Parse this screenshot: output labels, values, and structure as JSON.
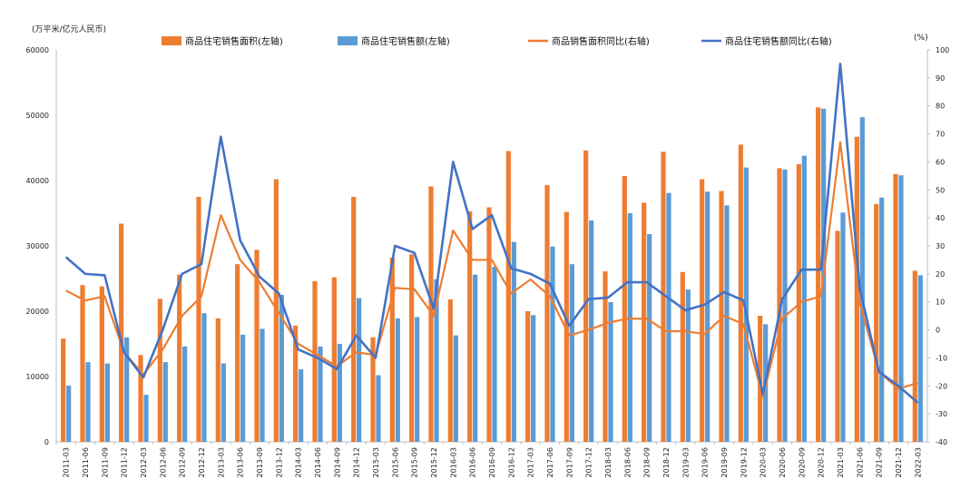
{
  "chart_data": {
    "type": "bar",
    "left_unit_label": "(万平米/亿元人民币)",
    "right_unit_label": "(%)",
    "categories": [
      "2011-03",
      "2011-06",
      "2011-09",
      "2011-12",
      "2012-03",
      "2012-06",
      "2012-09",
      "2012-12",
      "2013-03",
      "2013-06",
      "2013-09",
      "2013-12",
      "2014-03",
      "2014-06",
      "2014-09",
      "2014-12",
      "2015-03",
      "2015-06",
      "2015-09",
      "2015-12",
      "2016-03",
      "2016-06",
      "2016-09",
      "2016-12",
      "2017-03",
      "2017-06",
      "2017-09",
      "2017-12",
      "2018-03",
      "2018-06",
      "2018-09",
      "2018-12",
      "2019-03",
      "2019-06",
      "2019-09",
      "2019-12",
      "2020-03",
      "2020-06",
      "2020-09",
      "2020-12",
      "2021-03",
      "2021-06",
      "2021-09",
      "2021-12",
      "2022-03"
    ],
    "left_axis": {
      "min": 0,
      "max": 60000,
      "ticks": [
        0,
        10000,
        20000,
        30000,
        40000,
        50000,
        60000
      ]
    },
    "right_axis": {
      "min": -40,
      "max": 100,
      "ticks": [
        -40,
        -30,
        -20,
        -10,
        0,
        10,
        20,
        30,
        40,
        50,
        60,
        70,
        80,
        90,
        100
      ]
    },
    "series": [
      {
        "name": "商品住宅销售面积(左轴)",
        "type": "bar",
        "axis": "left",
        "color": "#ED7D31",
        "values": [
          15800,
          24000,
          23800,
          33400,
          13300,
          21900,
          25600,
          37500,
          18900,
          27200,
          29400,
          40200,
          17800,
          24600,
          25200,
          37500,
          16000,
          28200,
          28700,
          39100,
          21800,
          35300,
          35900,
          44500,
          20000,
          39300,
          35200,
          44600,
          26100,
          40700,
          36600,
          44400,
          26000,
          40200,
          38400,
          45500,
          19300,
          41900,
          42500,
          51200,
          32300,
          46700,
          36400,
          41000,
          26200
        ]
      },
      {
        "name": "商品住宅销售额(左轴)",
        "type": "bar",
        "axis": "left",
        "color": "#5B9BD5",
        "values": [
          8600,
          12200,
          12000,
          16000,
          7200,
          12200,
          14600,
          19700,
          12000,
          16400,
          17300,
          22500,
          11100,
          14600,
          15000,
          22000,
          10200,
          18900,
          19100,
          24900,
          16300,
          25600,
          26800,
          30600,
          19400,
          29900,
          27200,
          33900,
          21400,
          35000,
          31800,
          38100,
          23300,
          38300,
          36200,
          42000,
          18000,
          41700,
          43800,
          51000,
          35100,
          49700,
          37400,
          40800,
          25500
        ]
      },
      {
        "name": "商品销售面积同比(右轴)",
        "type": "line",
        "axis": "right",
        "color": "#ED7D31",
        "values": [
          14,
          10.5,
          12,
          -8,
          -16,
          -7,
          5,
          12,
          41,
          25,
          17,
          6,
          -5,
          -9,
          -13,
          -8,
          -9,
          15,
          14.5,
          5,
          35.5,
          25,
          25,
          13,
          18,
          12,
          -2,
          0,
          2.5,
          4,
          4,
          -0.5,
          -0.5,
          -1.5,
          5,
          2,
          -24,
          4,
          10,
          12,
          67,
          10,
          -15,
          -21,
          -19
        ]
      },
      {
        "name": "商品住宅销售额同比(右轴)",
        "type": "line",
        "axis": "right",
        "color": "#4472C4",
        "values": [
          26,
          20,
          19.5,
          -8,
          -17,
          0,
          20,
          23.5,
          69,
          32,
          19,
          13,
          -7,
          -10,
          -14,
          -2,
          -10,
          30,
          27.5,
          7.5,
          60,
          36,
          41,
          22,
          20,
          16.5,
          1.5,
          11,
          11.5,
          17,
          17,
          12,
          7,
          9,
          13.5,
          10.5,
          -23,
          11,
          21.5,
          21.5,
          95,
          15,
          -15,
          -20,
          -26
        ]
      }
    ]
  }
}
